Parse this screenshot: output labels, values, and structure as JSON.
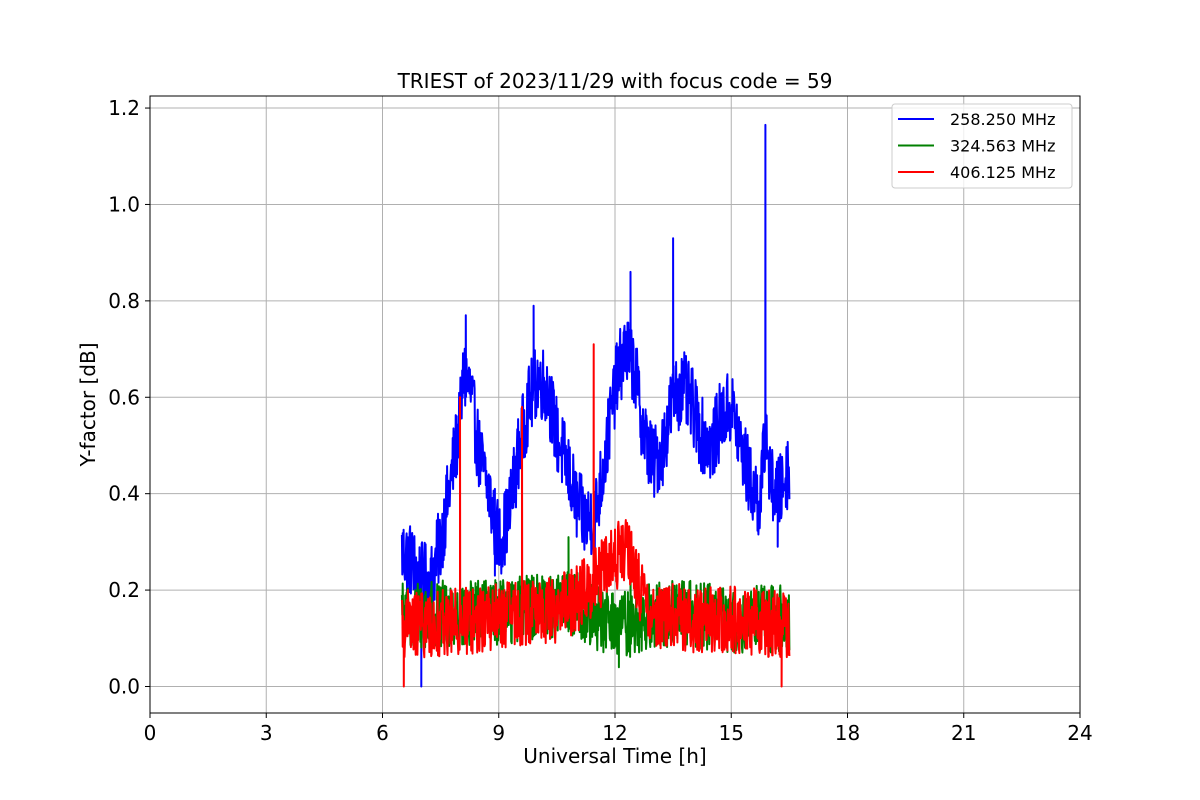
{
  "chart_data": {
    "type": "line",
    "title": "TRIEST of 2023/11/29 with focus code = 59",
    "xlabel": "Universal Time [h]",
    "ylabel": "Y-factor [dB]",
    "xlim": [
      0,
      24
    ],
    "ylim": [
      -0.055,
      1.225
    ],
    "xticks": [
      0,
      3,
      6,
      9,
      12,
      15,
      18,
      21,
      24
    ],
    "xtick_labels": [
      "0",
      "3",
      "6",
      "9",
      "12",
      "15",
      "18",
      "21",
      "24"
    ],
    "yticks": [
      0.0,
      0.2,
      0.4,
      0.6,
      0.8,
      1.0,
      1.2
    ],
    "ytick_labels": [
      "0.0",
      "0.2",
      "0.4",
      "0.6",
      "0.8",
      "1.0",
      "1.2"
    ],
    "grid": true,
    "legend_position": "top-right",
    "series": [
      {
        "name": "258.250 MHz",
        "color": "#0000ff",
        "x": [
          6.5,
          6.75,
          7.0,
          7.25,
          7.5,
          7.75,
          8.0,
          8.1,
          8.25,
          8.5,
          8.75,
          9.0,
          9.25,
          9.5,
          9.75,
          10.0,
          10.25,
          10.5,
          10.75,
          11.0,
          11.25,
          11.5,
          11.75,
          12.0,
          12.25,
          12.5,
          12.75,
          13.0,
          13.25,
          13.5,
          13.75,
          14.0,
          14.25,
          14.5,
          14.75,
          15.0,
          15.25,
          15.5,
          15.75,
          15.9,
          16.0,
          16.25,
          16.5
        ],
        "y": [
          0.28,
          0.26,
          0.22,
          0.22,
          0.3,
          0.42,
          0.55,
          0.65,
          0.62,
          0.48,
          0.4,
          0.3,
          0.35,
          0.48,
          0.58,
          0.64,
          0.62,
          0.52,
          0.46,
          0.38,
          0.34,
          0.36,
          0.48,
          0.62,
          0.7,
          0.66,
          0.52,
          0.46,
          0.5,
          0.6,
          0.62,
          0.58,
          0.52,
          0.5,
          0.56,
          0.58,
          0.5,
          0.42,
          0.38,
          0.55,
          0.42,
          0.4,
          0.46
        ],
        "noise": 0.08,
        "spikes": [
          {
            "x": 8.15,
            "y": 0.77
          },
          {
            "x": 9.9,
            "y": 0.79
          },
          {
            "x": 12.4,
            "y": 0.86
          },
          {
            "x": 13.5,
            "y": 0.93
          },
          {
            "x": 15.88,
            "y": 1.165
          }
        ],
        "dips": [
          {
            "x": 7.0,
            "y": 0.0
          },
          {
            "x": 8.9,
            "y": 0.23
          },
          {
            "x": 16.2,
            "y": 0.29
          }
        ]
      },
      {
        "name": "324.563 MHz",
        "color": "#008000",
        "x": [
          6.5,
          7.5,
          8.5,
          9.5,
          10.5,
          11.0,
          11.5,
          12.0,
          12.5,
          13.0,
          14.0,
          15.0,
          16.0,
          16.5
        ],
        "y": [
          0.15,
          0.15,
          0.15,
          0.16,
          0.17,
          0.17,
          0.14,
          0.13,
          0.13,
          0.15,
          0.15,
          0.14,
          0.14,
          0.14
        ],
        "noise": 0.07,
        "spikes": [
          {
            "x": 10.8,
            "y": 0.31
          },
          {
            "x": 12.4,
            "y": 0.29
          }
        ],
        "dips": [
          {
            "x": 12.1,
            "y": 0.04
          }
        ]
      },
      {
        "name": "406.125 MHz",
        "color": "#ff0000",
        "x": [
          6.5,
          7.5,
          8.5,
          9.5,
          10.5,
          11.0,
          11.5,
          12.0,
          12.25,
          12.5,
          12.75,
          13.0,
          14.0,
          15.0,
          16.0,
          16.5
        ],
        "y": [
          0.13,
          0.13,
          0.14,
          0.15,
          0.16,
          0.18,
          0.22,
          0.27,
          0.28,
          0.25,
          0.17,
          0.15,
          0.14,
          0.14,
          0.13,
          0.13
        ],
        "noise": 0.07,
        "spikes": [
          {
            "x": 8.0,
            "y": 0.6
          },
          {
            "x": 9.6,
            "y": 0.58
          },
          {
            "x": 11.45,
            "y": 0.71
          }
        ],
        "dips": [
          {
            "x": 6.55,
            "y": 0.0
          },
          {
            "x": 16.3,
            "y": 0.0
          }
        ]
      }
    ]
  }
}
